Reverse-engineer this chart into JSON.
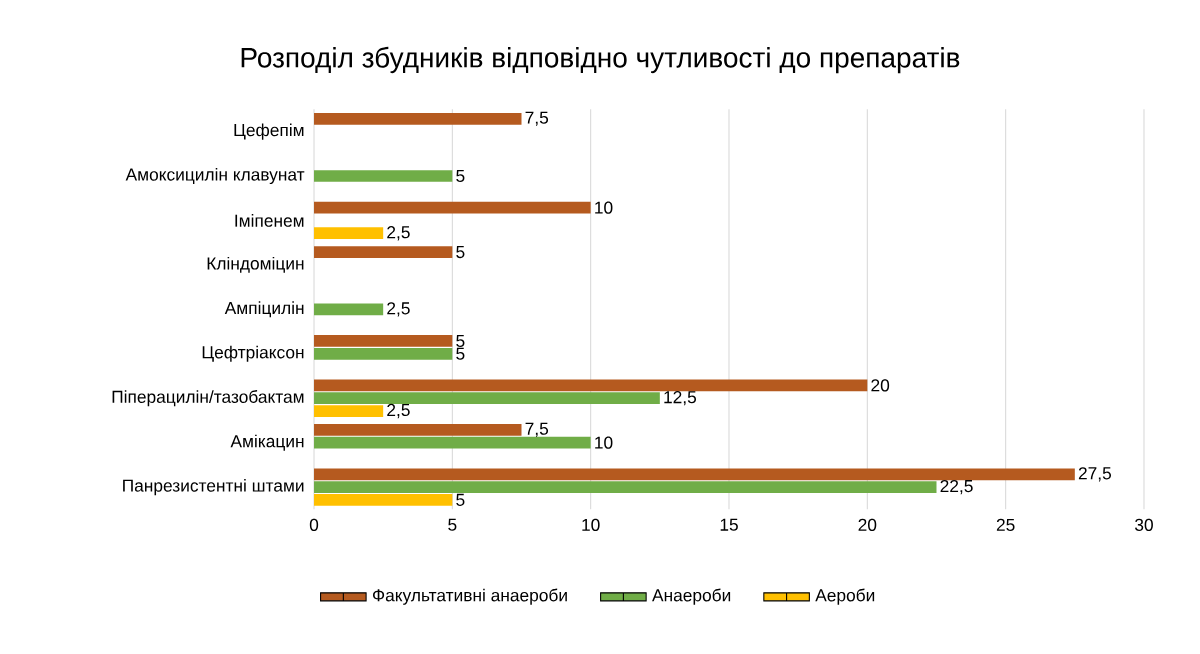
{
  "chart_data": {
    "type": "bar",
    "orientation": "horizontal",
    "title": "Розподіл збудників відповідно чутливості до препаратів",
    "categories": [
      "Цефепім",
      "Амоксицилін клавунат",
      "Іміпенем",
      "Кліндоміцин",
      "Ампіцилін",
      "Цефтріаксон",
      "Піперацилін/тазобактам",
      "Амікацин",
      "Панрезистентні штами"
    ],
    "series": [
      {
        "name": "Факультативні анаероби",
        "color": "#b55a1f",
        "values": [
          7.5,
          null,
          10,
          5,
          null,
          5,
          20,
          7.5,
          27.5
        ],
        "value_labels": [
          "7,5",
          null,
          "10",
          "5",
          null,
          "5",
          "20",
          "7,5",
          "27,5"
        ]
      },
      {
        "name": "Анаероби",
        "color": "#70ad47",
        "values": [
          null,
          5,
          null,
          null,
          2.5,
          5,
          12.5,
          10,
          22.5
        ],
        "value_labels": [
          null,
          "5",
          null,
          null,
          "2,5",
          "5",
          "12,5",
          "10",
          "22,5"
        ]
      },
      {
        "name": "Аероби",
        "color": "#ffc000",
        "values": [
          null,
          null,
          2.5,
          null,
          null,
          null,
          2.5,
          null,
          5
        ],
        "value_labels": [
          null,
          null,
          "2,5",
          null,
          null,
          null,
          "2,5",
          null,
          "5"
        ]
      }
    ],
    "xlim": [
      0,
      30
    ],
    "xticks": [
      0,
      5,
      10,
      15,
      20,
      25,
      30
    ],
    "grid": "x",
    "legend": "bottom"
  }
}
